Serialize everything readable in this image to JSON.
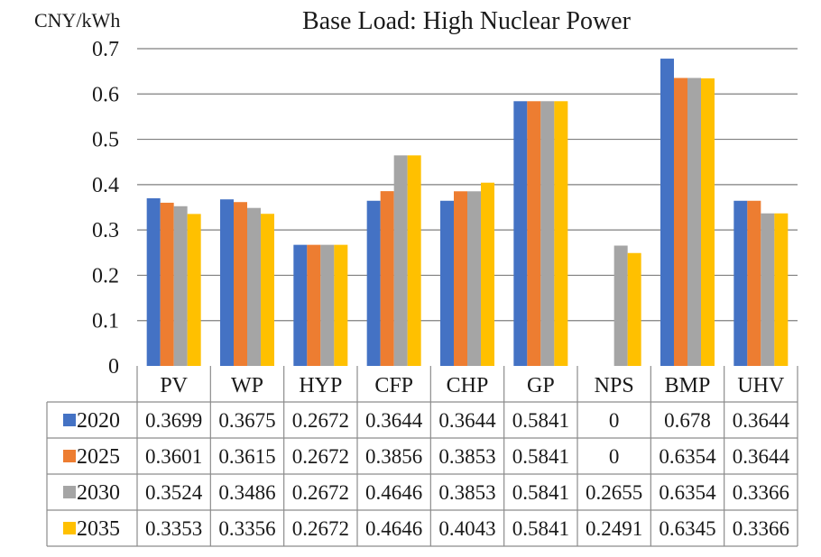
{
  "chart_data": {
    "type": "bar",
    "title": "Base Load: High Nuclear Power",
    "ylabel": "CNY/kWh",
    "ylim": [
      0,
      0.7
    ],
    "yticks": [
      "0",
      "0.1",
      "0.2",
      "0.3",
      "0.4",
      "0.5",
      "0.6",
      "0.7"
    ],
    "grid": true,
    "categories": [
      "PV",
      "WP",
      "HYP",
      "CFP",
      "CHP",
      "GP",
      "NPS",
      "BMP",
      "UHV"
    ],
    "series": [
      {
        "name": "2020",
        "color": "#4472c4",
        "values": [
          0.3699,
          0.3675,
          0.2672,
          0.3644,
          0.3644,
          0.5841,
          0,
          0.678,
          0.3644
        ],
        "labels": [
          "0.3699",
          "0.3675",
          "0.2672",
          "0.3644",
          "0.3644",
          "0.5841",
          "0",
          "0.678",
          "0.3644"
        ]
      },
      {
        "name": "2025",
        "color": "#ed7d31",
        "values": [
          0.3601,
          0.3615,
          0.2672,
          0.3856,
          0.3853,
          0.5841,
          0,
          0.6354,
          0.3644
        ],
        "labels": [
          "0.3601",
          "0.3615",
          "0.2672",
          "0.3856",
          "0.3853",
          "0.5841",
          "0",
          "0.6354",
          "0.3644"
        ]
      },
      {
        "name": "2030",
        "color": "#a5a5a5",
        "values": [
          0.3524,
          0.3486,
          0.2672,
          0.4646,
          0.3853,
          0.5841,
          0.2655,
          0.6354,
          0.3366
        ],
        "labels": [
          "0.3524",
          "0.3486",
          "0.2672",
          "0.4646",
          "0.3853",
          "0.5841",
          "0.2655",
          "0.6354",
          "0.3366"
        ]
      },
      {
        "name": "2035",
        "color": "#ffc000",
        "values": [
          0.3353,
          0.3356,
          0.2672,
          0.4646,
          0.4043,
          0.5841,
          0.2491,
          0.6345,
          0.3366
        ],
        "labels": [
          "0.3353",
          "0.3356",
          "0.2672",
          "0.4646",
          "0.4043",
          "0.5841",
          "0.2491",
          "0.6345",
          "0.3366"
        ]
      }
    ],
    "legend": "data-table"
  }
}
